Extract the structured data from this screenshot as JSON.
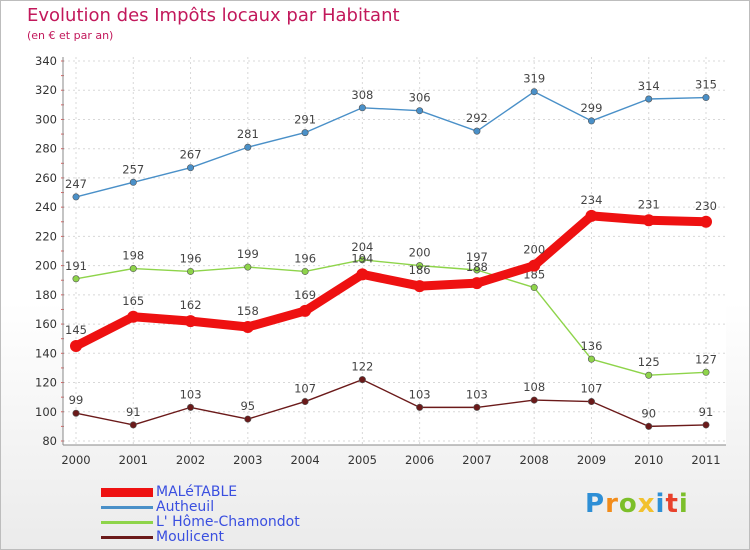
{
  "header": {
    "title": "Evolution des Impôts locaux par Habitant",
    "subtitle": "(en € et par an)"
  },
  "chart_data": {
    "type": "line",
    "title": "Evolution des Impôts locaux par Habitant",
    "subtitle": "(en € et par an)",
    "xlabel": "",
    "ylabel": "",
    "categories": [
      "2000",
      "2001",
      "2002",
      "2003",
      "2004",
      "2005",
      "2006",
      "2007",
      "2008",
      "2009",
      "2010",
      "2011"
    ],
    "ylim": [
      80,
      340
    ],
    "y_ticks": [
      80,
      100,
      120,
      140,
      160,
      180,
      200,
      220,
      240,
      260,
      280,
      300,
      320,
      340
    ],
    "grid": true,
    "legend_position": "bottom-left",
    "series": [
      {
        "name": "MALéTABLE",
        "color": "#ee1111",
        "values": [
          145,
          165,
          162,
          158,
          169,
          194,
          186,
          188,
          200,
          234,
          231,
          230
        ]
      },
      {
        "name": "Autheuil",
        "color": "#4a90c8",
        "values": [
          247,
          257,
          267,
          281,
          291,
          308,
          306,
          292,
          319,
          299,
          314,
          315
        ]
      },
      {
        "name": "L' Hôme-Chamondot",
        "color": "#8ed44a",
        "values": [
          191,
          198,
          196,
          199,
          196,
          204,
          200,
          197,
          185,
          136,
          125,
          127
        ]
      },
      {
        "name": "Moulicent",
        "color": "#6b1a1a",
        "values": [
          99,
          91,
          103,
          95,
          107,
          122,
          103,
          103,
          108,
          107,
          90,
          91
        ]
      }
    ]
  },
  "logo": {
    "letters": [
      "P",
      "r",
      "o",
      "x",
      "i",
      "t",
      "i"
    ],
    "colors": [
      "#2e8fd6",
      "#f28c1a",
      "#7cbf2a",
      "#f2c12e",
      "#2e8fd6",
      "#e8412c",
      "#7cbf2a"
    ]
  }
}
